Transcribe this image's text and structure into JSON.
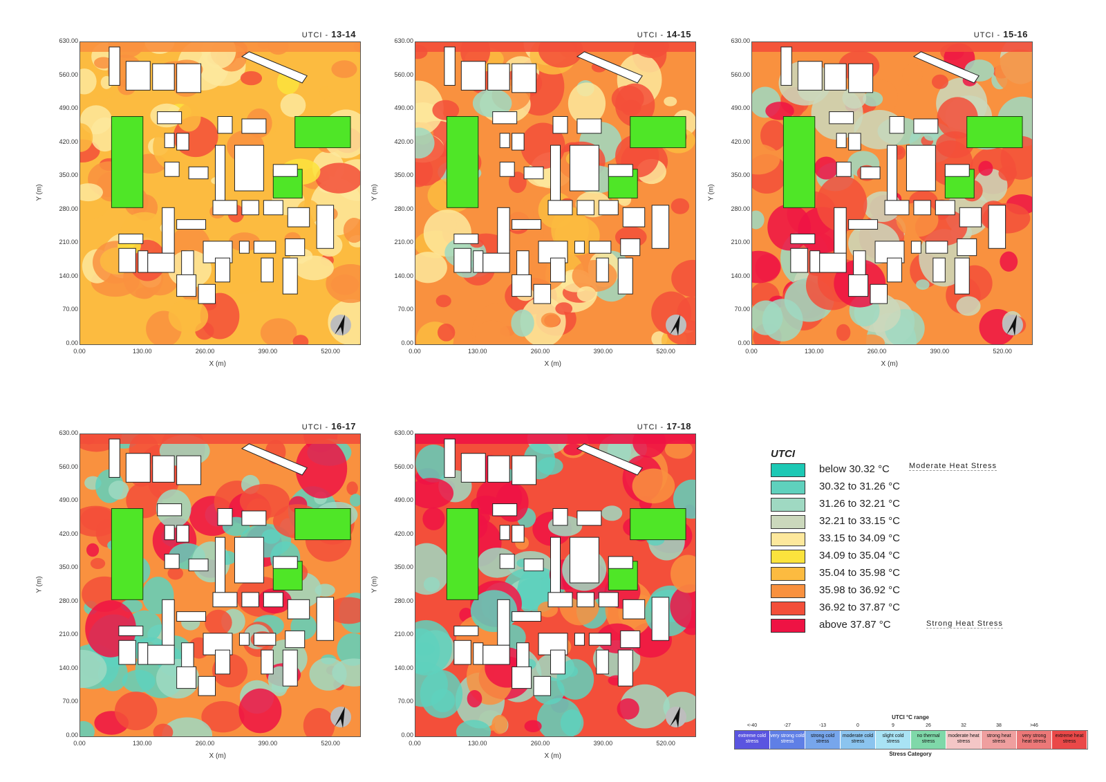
{
  "axes": {
    "x_label": "X (m)",
    "y_label": "Y (m)",
    "x_ticks": [
      "0.00",
      "130.00",
      "260.00",
      "390.00",
      "520.00"
    ],
    "y_ticks": [
      "630.00",
      "560.00",
      "490.00",
      "420.00",
      "350.00",
      "280.00",
      "210.00",
      "140.00",
      "70.00",
      "0.00"
    ]
  },
  "panels": [
    {
      "prefix": "UTCI - ",
      "time": "13-14"
    },
    {
      "prefix": "UTCI - ",
      "time": "14-15"
    },
    {
      "prefix": "UTCI - ",
      "time": "15-16"
    },
    {
      "prefix": "UTCI - ",
      "time": "16-17"
    },
    {
      "prefix": "UTCI -  ",
      "time": "17-18"
    }
  ],
  "legend": {
    "title": "UTCI",
    "items": [
      {
        "label": "below 30.32 °C",
        "color": "#1cc9b5"
      },
      {
        "label": "30.32 to 31.26 °C",
        "color": "#5fd1bd"
      },
      {
        "label": "31.26 to 32.21 °C",
        "color": "#9fd9c2"
      },
      {
        "label": "32.21 to 33.15 °C",
        "color": "#cbd8bc"
      },
      {
        "label": "33.15 to 34.09 °C",
        "color": "#fde89c"
      },
      {
        "label": "34.09 to 35.04 °C",
        "color": "#fbe33d"
      },
      {
        "label": "35.04 to 35.98 °C",
        "color": "#fcbb40"
      },
      {
        "label": "35.98 to 36.92 °C",
        "color": "#f9913f"
      },
      {
        "label": "36.92 to 37.87 °C",
        "color": "#f34f3a"
      },
      {
        "label": "above 37.87 °C",
        "color": "#ee1344"
      }
    ],
    "note_top": "Moderate Heat Stress",
    "note_bottom": "Strong Heat Stress"
  },
  "stress_scale": {
    "title": "UTCI °C range",
    "footer": "Stress Category",
    "ticks": [
      "<-40",
      "-27",
      "-13",
      "0",
      "9",
      "26",
      "32",
      "38",
      ">46"
    ],
    "categories": [
      {
        "label": "extreme cold stress",
        "color": "#5a55e0"
      },
      {
        "label": "very strong cold stress",
        "color": "#5f7fe6"
      },
      {
        "label": "strong cold stress",
        "color": "#77a6ec"
      },
      {
        "label": "moderate cold stress",
        "color": "#8bc4ef"
      },
      {
        "label": "slight cold stress",
        "color": "#a9e3f4"
      },
      {
        "label": "no thermal stress",
        "color": "#7fd8a9"
      },
      {
        "label": "moderate heat stress",
        "color": "#f4c6c6"
      },
      {
        "label": "strong heat stress",
        "color": "#ef9f9f"
      },
      {
        "label": "very strong heat stress",
        "color": "#ec7878"
      },
      {
        "label": "extreme heat stress",
        "color": "#ea4848"
      }
    ]
  }
}
